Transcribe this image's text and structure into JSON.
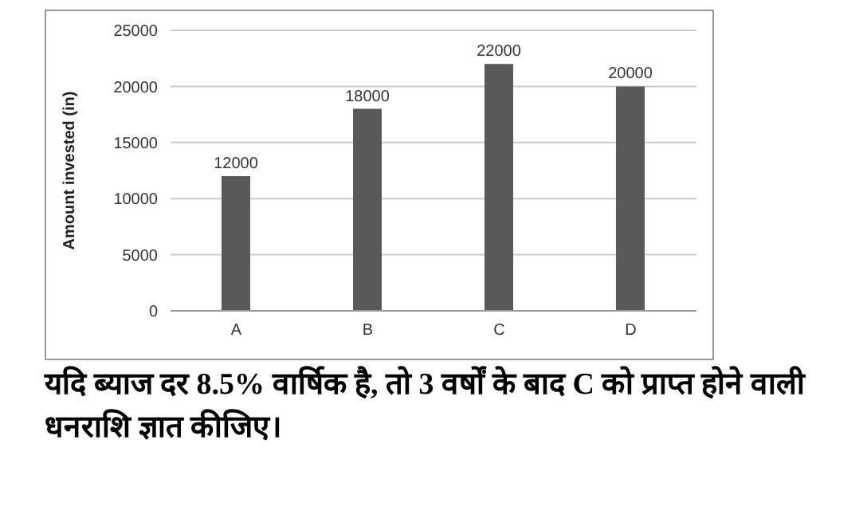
{
  "chart_data": {
    "type": "bar",
    "ylabel": "Amount invested (in)",
    "categories": [
      "A",
      "B",
      "C",
      "D"
    ],
    "values": [
      12000,
      18000,
      22000,
      20000
    ],
    "color": "#595959",
    "ylim": [
      0,
      25000
    ],
    "yticks": [
      0,
      5000,
      10000,
      15000,
      20000,
      25000
    ],
    "grid": "y",
    "data_labels": true,
    "annotations": [
      "यदि ब्याज दर 8.5% वार्षिक है, तो 3 वर्षों के बाद C को प्राप्त होने वाली धनराशि ज्ञात कीजिए।"
    ]
  }
}
